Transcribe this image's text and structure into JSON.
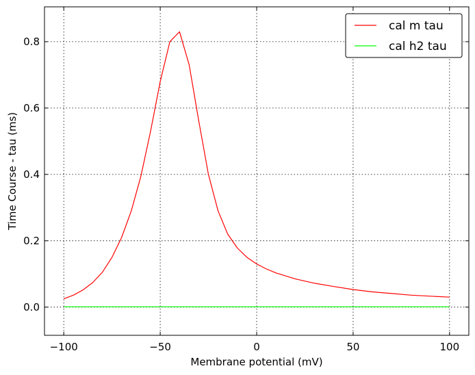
{
  "chart_data": {
    "type": "line",
    "xlabel": "Membrane potential (mV)",
    "ylabel": "Time Course - tau (ms)",
    "xlim": [
      -110,
      110
    ],
    "ylim": [
      -0.085,
      0.905
    ],
    "xticks": [
      -100,
      -50,
      0,
      50,
      100
    ],
    "xtick_labels": [
      "−100",
      "−50",
      "0",
      "50",
      "100"
    ],
    "yticks": [
      0.0,
      0.2,
      0.4,
      0.6,
      0.8
    ],
    "ytick_labels": [
      "0.0",
      "0.2",
      "0.4",
      "0.6",
      "0.8"
    ],
    "grid": true,
    "legend_position": "top-right",
    "series": [
      {
        "name": "cal m tau",
        "color": "#ff0000",
        "x": [
          -100,
          -95,
          -90,
          -85,
          -80,
          -75,
          -70,
          -65,
          -60,
          -55,
          -50,
          -45,
          -40,
          -35,
          -30,
          -25,
          -20,
          -15,
          -10,
          -5,
          0,
          5,
          10,
          20,
          30,
          40,
          50,
          60,
          70,
          80,
          90,
          100
        ],
        "y": [
          0.025,
          0.036,
          0.052,
          0.074,
          0.105,
          0.15,
          0.21,
          0.29,
          0.395,
          0.53,
          0.68,
          0.8,
          0.83,
          0.73,
          0.56,
          0.4,
          0.29,
          0.22,
          0.178,
          0.15,
          0.13,
          0.115,
          0.103,
          0.085,
          0.072,
          0.062,
          0.053,
          0.046,
          0.041,
          0.036,
          0.033,
          0.03
        ]
      },
      {
        "name": "cal h2 tau",
        "color": "#00ff00",
        "x": [
          -100,
          100
        ],
        "y": [
          0.001,
          0.001
        ]
      }
    ]
  }
}
